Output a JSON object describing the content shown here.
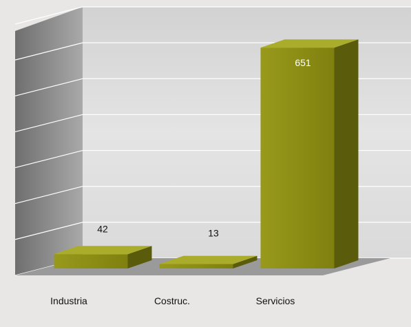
{
  "chart_data": {
    "type": "bar",
    "categories": [
      "Industria",
      "Costruc.",
      "Servicios"
    ],
    "values": [
      42,
      13,
      651
    ],
    "ylim": [
      0,
      700
    ],
    "grid": true,
    "colors": {
      "bar_front": "#8a8c14",
      "bar_top": "#aaad2b",
      "bar_side": "#5a5c0c",
      "back_wall": "#dcdcdc",
      "side_wall": "#8a8a8a",
      "floor": "#9a9a9a",
      "value_label_inside": "#ffffff",
      "value_label_outside": "#111111",
      "category_label": "#111111"
    }
  }
}
